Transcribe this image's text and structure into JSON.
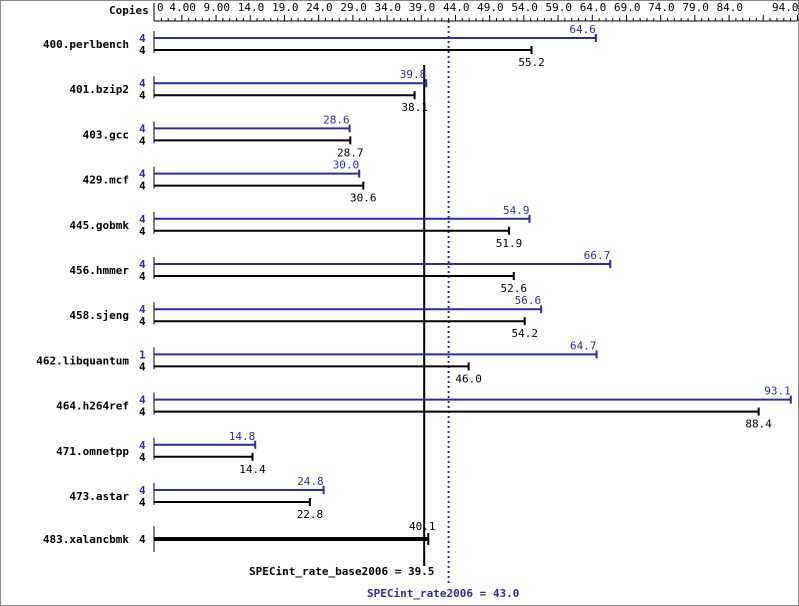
{
  "chart_data": {
    "type": "bar",
    "orientation": "horizontal",
    "axis_label": "Copies",
    "xlim": [
      0,
      94
    ],
    "tick_labels": [
      "0",
      "4.00",
      "9.00",
      "14.0",
      "19.0",
      "24.0",
      "29.0",
      "34.0",
      "39.0",
      "44.0",
      "49.0",
      "54.0",
      "59.0",
      "64.0",
      "69.0",
      "74.0",
      "79.0",
      "84.0",
      "94.0"
    ],
    "tick_values": [
      0,
      4,
      9,
      14,
      19,
      24,
      29,
      34,
      39,
      44,
      49,
      54,
      59,
      64,
      69,
      74,
      79,
      84,
      94
    ],
    "categories": [
      "400.perlbench",
      "401.bzip2",
      "403.gcc",
      "429.mcf",
      "445.gobmk",
      "456.hmmer",
      "458.sjeng",
      "462.libquantum",
      "464.h264ref",
      "471.omnetpp",
      "473.astar",
      "483.xalancbmk"
    ],
    "series": [
      {
        "name": "SPECint_rate2006",
        "color": "#2a2aa8",
        "copies": [
          "4",
          "4",
          "4",
          "4",
          "4",
          "4",
          "4",
          "1",
          "4",
          "4",
          "4",
          null
        ],
        "values": [
          64.6,
          39.8,
          28.6,
          30.0,
          54.9,
          66.7,
          56.6,
          64.7,
          93.1,
          14.8,
          24.8,
          null
        ]
      },
      {
        "name": "SPECint_rate_base2006",
        "color": "#000000",
        "copies": [
          "4",
          "4",
          "4",
          "4",
          "4",
          "4",
          "4",
          "4",
          "4",
          "4",
          "4",
          "4"
        ],
        "values": [
          55.2,
          38.1,
          28.7,
          30.6,
          51.9,
          52.6,
          54.2,
          46.0,
          88.4,
          14.4,
          22.8,
          40.1
        ]
      }
    ],
    "reference_lines": [
      {
        "label": "SPECint_rate_base2006 = 39.5",
        "value": 39.5,
        "color": "#000000",
        "style": "solid"
      },
      {
        "label": "SPECint_rate2006 = 43.0",
        "value": 43.0,
        "color": "#2a2aa8",
        "style": "dotted"
      }
    ]
  }
}
